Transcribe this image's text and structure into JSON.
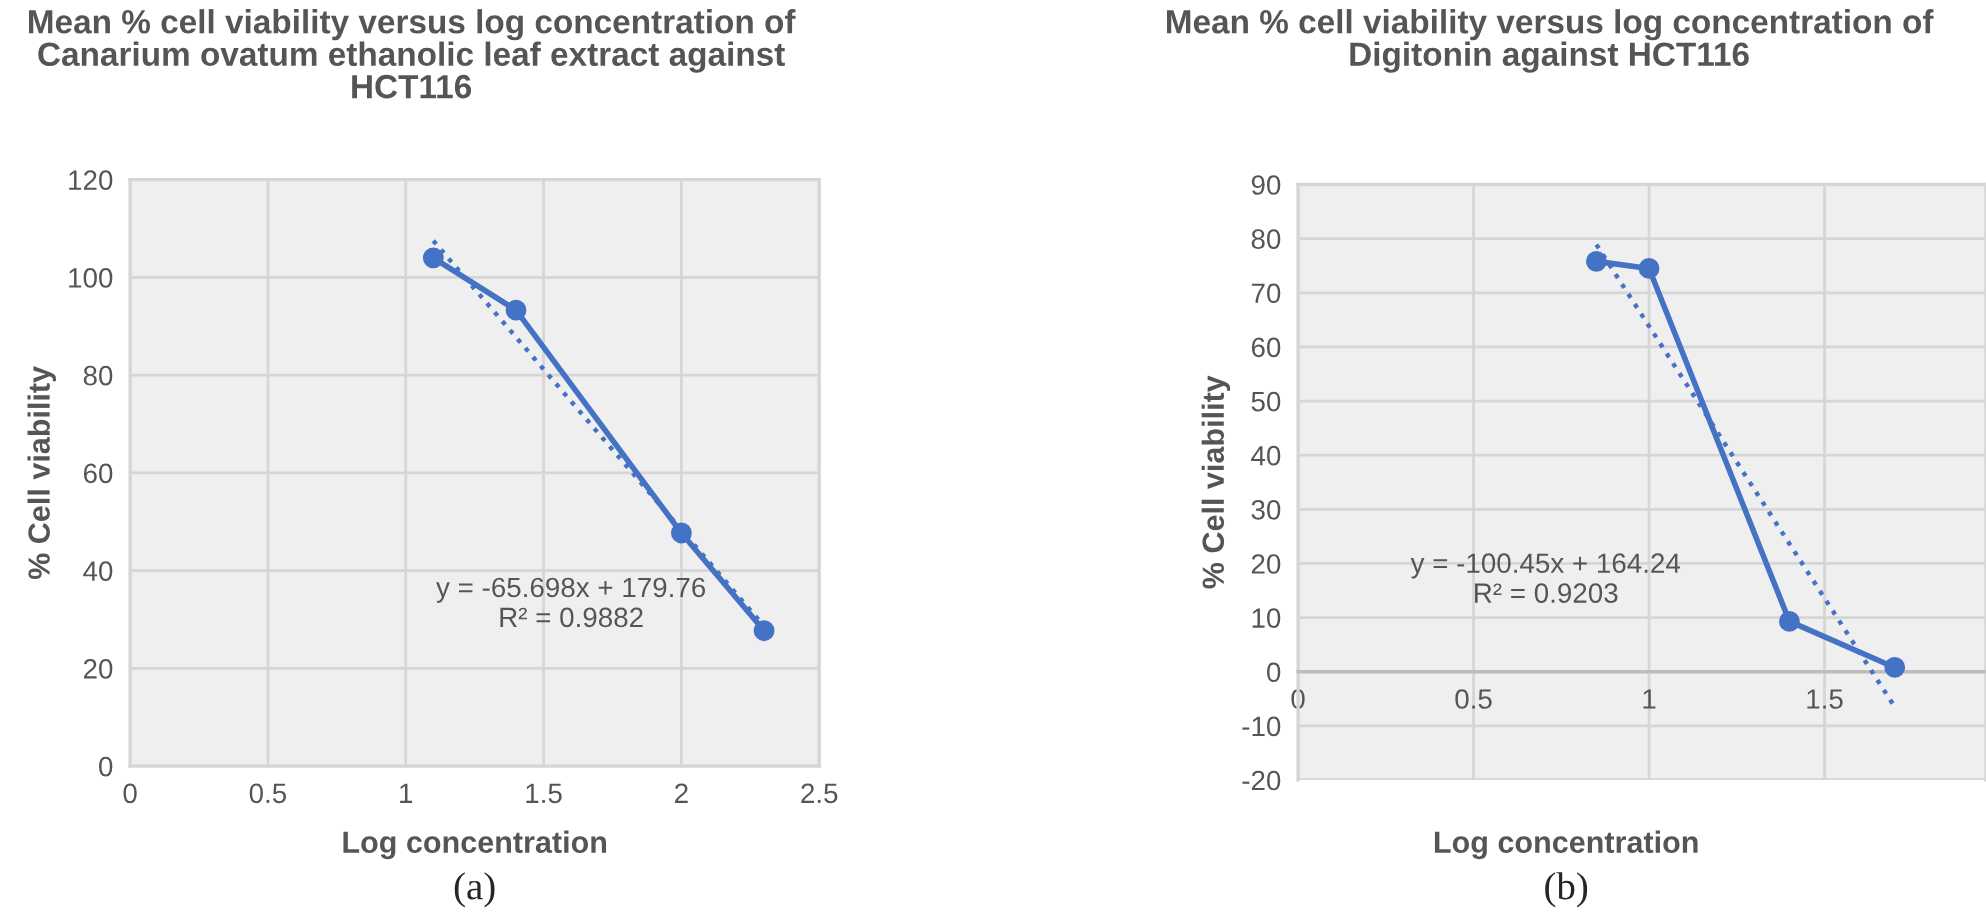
{
  "chart_data": [
    {
      "type": "line",
      "title": "Mean % cell viability versus log concentration of Canarium ovatum ethanolic leaf extract against HCT116",
      "xlabel": "Log concentration",
      "ylabel": "% Cell viability",
      "series": [
        {
          "type": "line",
          "color": "#4472c4",
          "x": [
            1.1,
            1.4,
            2,
            2.3
          ],
          "values": [
            104,
            93.3,
            47.7,
            27.7
          ],
          "marker": "circle",
          "line_style": "solid"
        },
        {
          "type": "line",
          "color": "#4472c4",
          "x": [
            1.1,
            2.3
          ],
          "values": [
            107.5,
            28.6
          ],
          "marker": "none",
          "line_style": "dotted"
        }
      ],
      "xlim": [
        0,
        2.5
      ],
      "xticks": [
        0,
        0.5,
        1,
        1.5,
        2,
        2.5
      ],
      "ylim": [
        0,
        120
      ],
      "yticks": [
        0,
        20,
        40,
        60,
        80,
        100,
        120
      ],
      "grid": true,
      "legend": false,
      "annotations": [
        "y = -65.698x + 179.76\nR² = 0.9882",
        "(a)"
      ]
    },
    {
      "type": "line",
      "title": "Mean % cell viability versus log concentration of Digitonin against HCT116",
      "xlabel": "Log concentration",
      "ylabel": "% Cell viability",
      "series": [
        {
          "type": "line",
          "color": "#4472c4",
          "x": [
            0.85,
            1.0,
            1.4,
            1.7
          ],
          "values": [
            75.8,
            74.5,
            9.3,
            0.8
          ],
          "marker": "circle",
          "line_style": "solid"
        },
        {
          "type": "line",
          "color": "#4472c4",
          "x": [
            0.85,
            1.7
          ],
          "values": [
            78.9,
            -6.5
          ],
          "marker": "none",
          "line_style": "dotted"
        }
      ],
      "xlim": [
        0,
        1.96
      ],
      "xticks": [
        0,
        0.5,
        1,
        1.5
      ],
      "ylim": [
        -20,
        90
      ],
      "yticks": [
        -20,
        -10,
        0,
        10,
        20,
        30,
        40,
        50,
        60,
        70,
        80,
        90
      ],
      "grid": true,
      "legend": false,
      "annotations": [
        "y = -100.45x + 164.24\nR² = 0.9203",
        "(b)"
      ]
    }
  ]
}
